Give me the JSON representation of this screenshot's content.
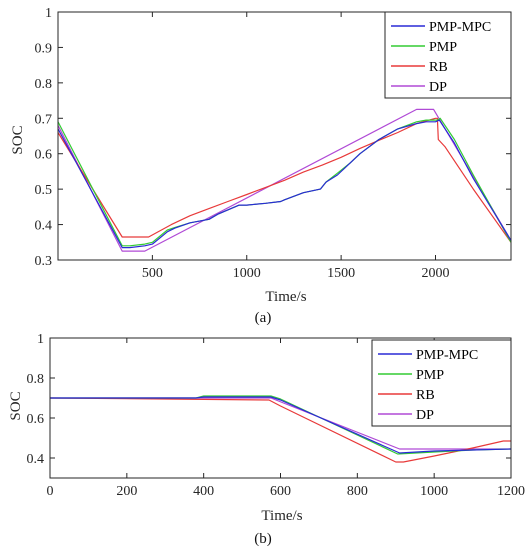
{
  "chart_data": [
    {
      "type": "line",
      "subfigure_label": "(a)",
      "xlabel": "Time/s",
      "ylabel": "SOC",
      "xlim": [
        0,
        2400
      ],
      "ylim": [
        0.3,
        1.0
      ],
      "xticks": [
        "500",
        "1000",
        "1500",
        "2000"
      ],
      "yticks": [
        "0.3",
        "0.4",
        "0.5",
        "0.6",
        "0.7",
        "0.8",
        "0.9",
        "1"
      ],
      "legend_position": "top-right",
      "legend": [
        "PMP-MPC",
        "PMP",
        "RB",
        "DP"
      ],
      "series": [
        {
          "name": "PMP-MPC",
          "color": "#2a2ad6",
          "x": [
            0,
            340,
            380,
            460,
            500,
            580,
            620,
            700,
            800,
            850,
            960,
            1000,
            1100,
            1180,
            1200,
            1300,
            1390,
            1420,
            1480,
            1550,
            1600,
            1700,
            1800,
            1900,
            1950,
            2000,
            2020,
            2100,
            2200,
            2400
          ],
          "y": [
            0.67,
            0.335,
            0.335,
            0.34,
            0.345,
            0.38,
            0.39,
            0.405,
            0.415,
            0.43,
            0.455,
            0.455,
            0.46,
            0.465,
            0.47,
            0.49,
            0.5,
            0.52,
            0.54,
            0.575,
            0.6,
            0.64,
            0.67,
            0.685,
            0.69,
            0.69,
            0.695,
            0.63,
            0.53,
            0.355
          ]
        },
        {
          "name": "PMP",
          "color": "#33cc33",
          "x": [
            0,
            340,
            380,
            460,
            500,
            580,
            620,
            700,
            800,
            850,
            960,
            1000,
            1100,
            1180,
            1200,
            1300,
            1390,
            1420,
            1480,
            1550,
            1600,
            1700,
            1800,
            1900,
            1950,
            2010,
            2025,
            2100,
            2200,
            2400
          ],
          "y": [
            0.69,
            0.34,
            0.34,
            0.345,
            0.35,
            0.385,
            0.392,
            0.405,
            0.415,
            0.43,
            0.455,
            0.455,
            0.46,
            0.465,
            0.47,
            0.49,
            0.5,
            0.52,
            0.545,
            0.575,
            0.6,
            0.64,
            0.67,
            0.69,
            0.695,
            0.695,
            0.7,
            0.64,
            0.54,
            0.35
          ]
        },
        {
          "name": "RB",
          "color": "#e83a3a",
          "x": [
            0,
            340,
            480,
            600,
            700,
            800,
            900,
            1000,
            1100,
            1200,
            1300,
            1400,
            1500,
            1600,
            1700,
            1800,
            1900,
            2000,
            2010,
            2015,
            2050,
            2100,
            2200,
            2400
          ],
          "y": [
            0.66,
            0.365,
            0.365,
            0.4,
            0.425,
            0.445,
            0.465,
            0.485,
            0.505,
            0.525,
            0.548,
            0.568,
            0.59,
            0.615,
            0.638,
            0.66,
            0.685,
            0.7,
            0.7,
            0.64,
            0.62,
            0.58,
            0.5,
            0.35
          ]
        },
        {
          "name": "DP",
          "color": "#b04ad6",
          "x": [
            0,
            340,
            460,
            1900,
            1990,
            2400
          ],
          "y": [
            0.68,
            0.325,
            0.325,
            0.725,
            0.725,
            0.355
          ]
        }
      ]
    },
    {
      "type": "line",
      "subfigure_label": "(b)",
      "xlabel": "Time/s",
      "ylabel": "SOC",
      "xlim": [
        0,
        1200
      ],
      "ylim": [
        0.3,
        1.0
      ],
      "xticks": [
        "0",
        "200",
        "400",
        "600",
        "800",
        "1000",
        "1200"
      ],
      "yticks": [
        "0.4",
        "0.6",
        "0.8",
        "1"
      ],
      "legend_position": "top-right",
      "legend": [
        "PMP-MPC",
        "PMP",
        "RB",
        "DP"
      ],
      "series": [
        {
          "name": "PMP-MPC",
          "color": "#2a2ad6",
          "x": [
            0,
            380,
            400,
            575,
            600,
            910,
            1000,
            1100,
            1200
          ],
          "y": [
            0.7,
            0.7,
            0.705,
            0.705,
            0.69,
            0.425,
            0.435,
            0.44,
            0.445
          ]
        },
        {
          "name": "PMP",
          "color": "#33cc33",
          "x": [
            0,
            380,
            400,
            575,
            600,
            905,
            1000,
            1100,
            1200
          ],
          "y": [
            0.7,
            0.7,
            0.71,
            0.71,
            0.695,
            0.42,
            0.43,
            0.44,
            0.445
          ]
        },
        {
          "name": "RB",
          "color": "#e83a3a",
          "x": [
            0,
            570,
            600,
            900,
            920,
            1000,
            1100,
            1180,
            1200
          ],
          "y": [
            0.7,
            0.69,
            0.66,
            0.38,
            0.38,
            0.41,
            0.45,
            0.485,
            0.485
          ]
        },
        {
          "name": "DP",
          "color": "#b04ad6",
          "x": [
            0,
            575,
            910,
            1000,
            1100,
            1200
          ],
          "y": [
            0.7,
            0.7,
            0.445,
            0.445,
            0.445,
            0.445
          ]
        }
      ]
    }
  ]
}
